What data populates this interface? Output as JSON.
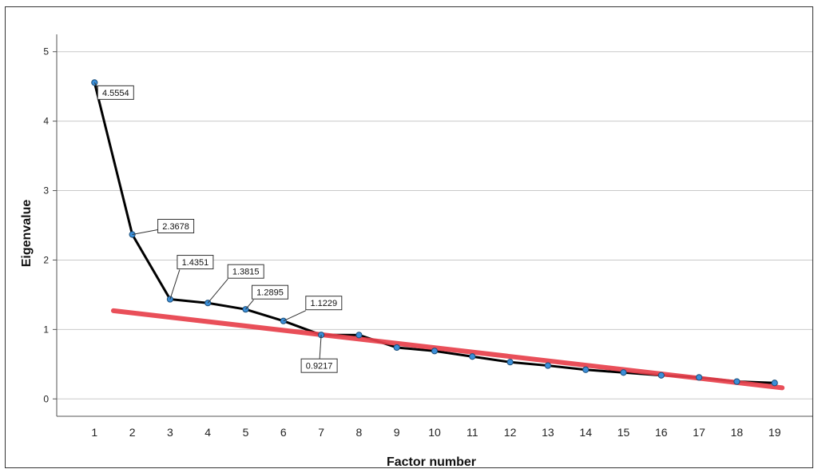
{
  "chart_data": {
    "type": "line",
    "title": "",
    "xlabel": "Factor number",
    "ylabel": "Eigenvalue",
    "xlim": [
      0,
      20
    ],
    "ylim": [
      -0.25,
      5.25
    ],
    "grid": "horizontal",
    "x": [
      1,
      2,
      3,
      4,
      5,
      6,
      7,
      8,
      9,
      10,
      11,
      12,
      13,
      14,
      15,
      16,
      17,
      18,
      19
    ],
    "yticks": [
      0,
      1,
      2,
      3,
      4,
      5
    ],
    "series": [
      {
        "values": [
          4.5554,
          2.3678,
          1.4351,
          1.3815,
          1.2895,
          1.1229,
          0.9217,
          0.92,
          0.74,
          0.69,
          0.61,
          0.53,
          0.48,
          0.42,
          0.38,
          0.34,
          0.31,
          0.25,
          0.23
        ],
        "line_color": "#000000",
        "marker_color": "#3b8fd9"
      }
    ],
    "annotations": [
      {
        "x": 1,
        "y": 4.5554,
        "text": "4.5554"
      },
      {
        "x": 2,
        "y": 2.3678,
        "text": "2.3678"
      },
      {
        "x": 3,
        "y": 1.4351,
        "text": "1.4351"
      },
      {
        "x": 4,
        "y": 1.3815,
        "text": "1.3815"
      },
      {
        "x": 5,
        "y": 1.2895,
        "text": "1.2895"
      },
      {
        "x": 6,
        "y": 1.1229,
        "text": "1.1229"
      },
      {
        "x": 7,
        "y": 0.9217,
        "text": "0.9217"
      }
    ],
    "trend_line": {
      "x": [
        1.5,
        19.2
      ],
      "y": [
        1.27,
        0.16
      ],
      "color": "#e8414c"
    }
  }
}
